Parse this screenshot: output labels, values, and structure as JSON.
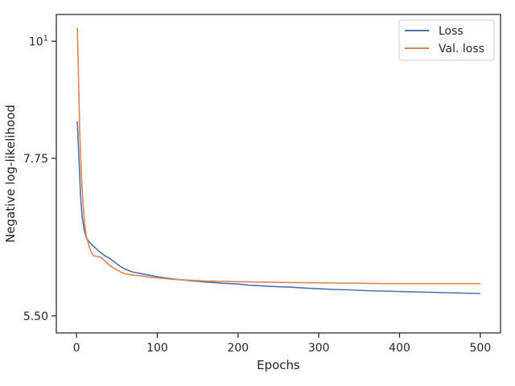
{
  "chart_data": {
    "type": "line",
    "xlabel": "Epochs",
    "ylabel": "Negative log-likelihood",
    "xlim": [
      -25,
      525
    ],
    "ylim": [
      5.3,
      10.6
    ],
    "yscale": "log",
    "x_ticks": [
      0,
      100,
      200,
      300,
      400,
      500
    ],
    "y_ticks": [
      {
        "value": 10,
        "label": "10",
        "sup": "1"
      },
      {
        "value": 7.75,
        "label": "7.75",
        "sup": ""
      },
      {
        "value": 5.5,
        "label": "5.50",
        "sup": ""
      }
    ],
    "grid": false,
    "legend_position": "top-right",
    "series": [
      {
        "name": "Loss",
        "color": "#4c72b0",
        "x": [
          1,
          3,
          5,
          7,
          10,
          13,
          16,
          20,
          25,
          30,
          35,
          40,
          45,
          50,
          55,
          60,
          70,
          80,
          90,
          100,
          110,
          120,
          130,
          140,
          150,
          160,
          170,
          180,
          190,
          200,
          215,
          230,
          250,
          265,
          280,
          300,
          320,
          340,
          360,
          380,
          400,
          420,
          440,
          460,
          480,
          500
        ],
        "y": [
          8.4,
          7.75,
          7.15,
          6.82,
          6.6,
          6.5,
          6.46,
          6.41,
          6.36,
          6.31,
          6.27,
          6.24,
          6.2,
          6.16,
          6.12,
          6.09,
          6.05,
          6.03,
          6.01,
          5.99,
          5.975,
          5.96,
          5.95,
          5.94,
          5.93,
          5.92,
          5.915,
          5.905,
          5.9,
          5.895,
          5.88,
          5.87,
          5.86,
          5.855,
          5.845,
          5.835,
          5.825,
          5.82,
          5.81,
          5.805,
          5.8,
          5.795,
          5.79,
          5.785,
          5.78,
          5.775
        ]
      },
      {
        "name": "Val. loss",
        "color": "#dd8452",
        "x": [
          1,
          2,
          3,
          4,
          6,
          8,
          10,
          12,
          15,
          18,
          21,
          25,
          30,
          35,
          40,
          45,
          50,
          55,
          60,
          70,
          80,
          90,
          100,
          120,
          140,
          160,
          180,
          200,
          230,
          260,
          290,
          320,
          350,
          380,
          410,
          440,
          470,
          500
        ],
        "y": [
          10.3,
          9.6,
          8.85,
          8.2,
          7.5,
          7.05,
          6.72,
          6.55,
          6.43,
          6.32,
          6.27,
          6.26,
          6.25,
          6.2,
          6.15,
          6.11,
          6.08,
          6.05,
          6.03,
          6.01,
          6.0,
          5.985,
          5.975,
          5.955,
          5.945,
          5.935,
          5.93,
          5.925,
          5.92,
          5.915,
          5.912,
          5.908,
          5.905,
          5.9,
          5.9,
          5.9,
          5.9,
          5.9
        ]
      }
    ]
  }
}
